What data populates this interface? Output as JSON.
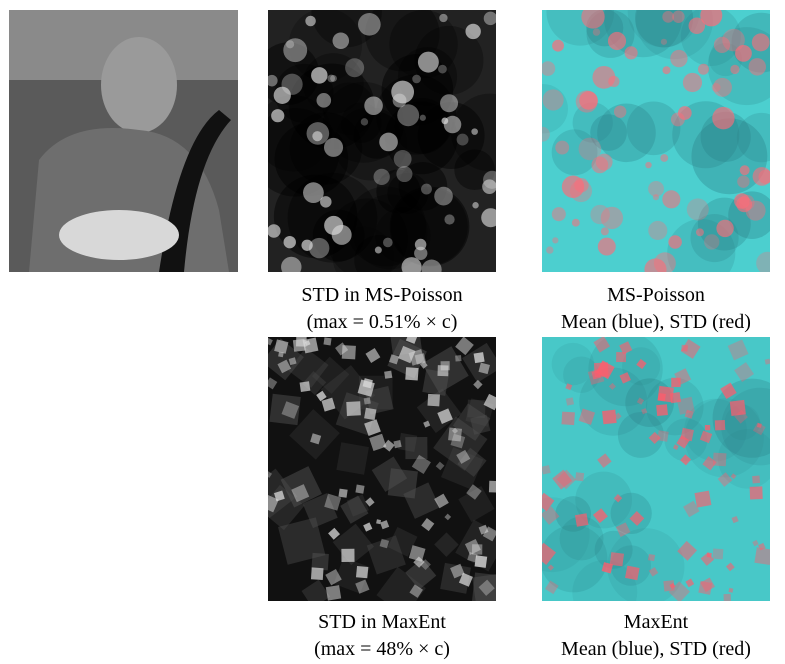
{
  "figure": {
    "row1": {
      "std_caption": [
        "STD in MS-Poisson",
        "(max = 0.51% × c)"
      ],
      "mean_caption": [
        "MS-Poisson",
        "Mean (blue), STD (red)"
      ]
    },
    "row2": {
      "std_caption": [
        "STD in MaxEnt",
        "(max = 48% × c)"
      ],
      "mean_caption": [
        "MaxEnt",
        "Mean (blue), STD (red)"
      ]
    }
  }
}
